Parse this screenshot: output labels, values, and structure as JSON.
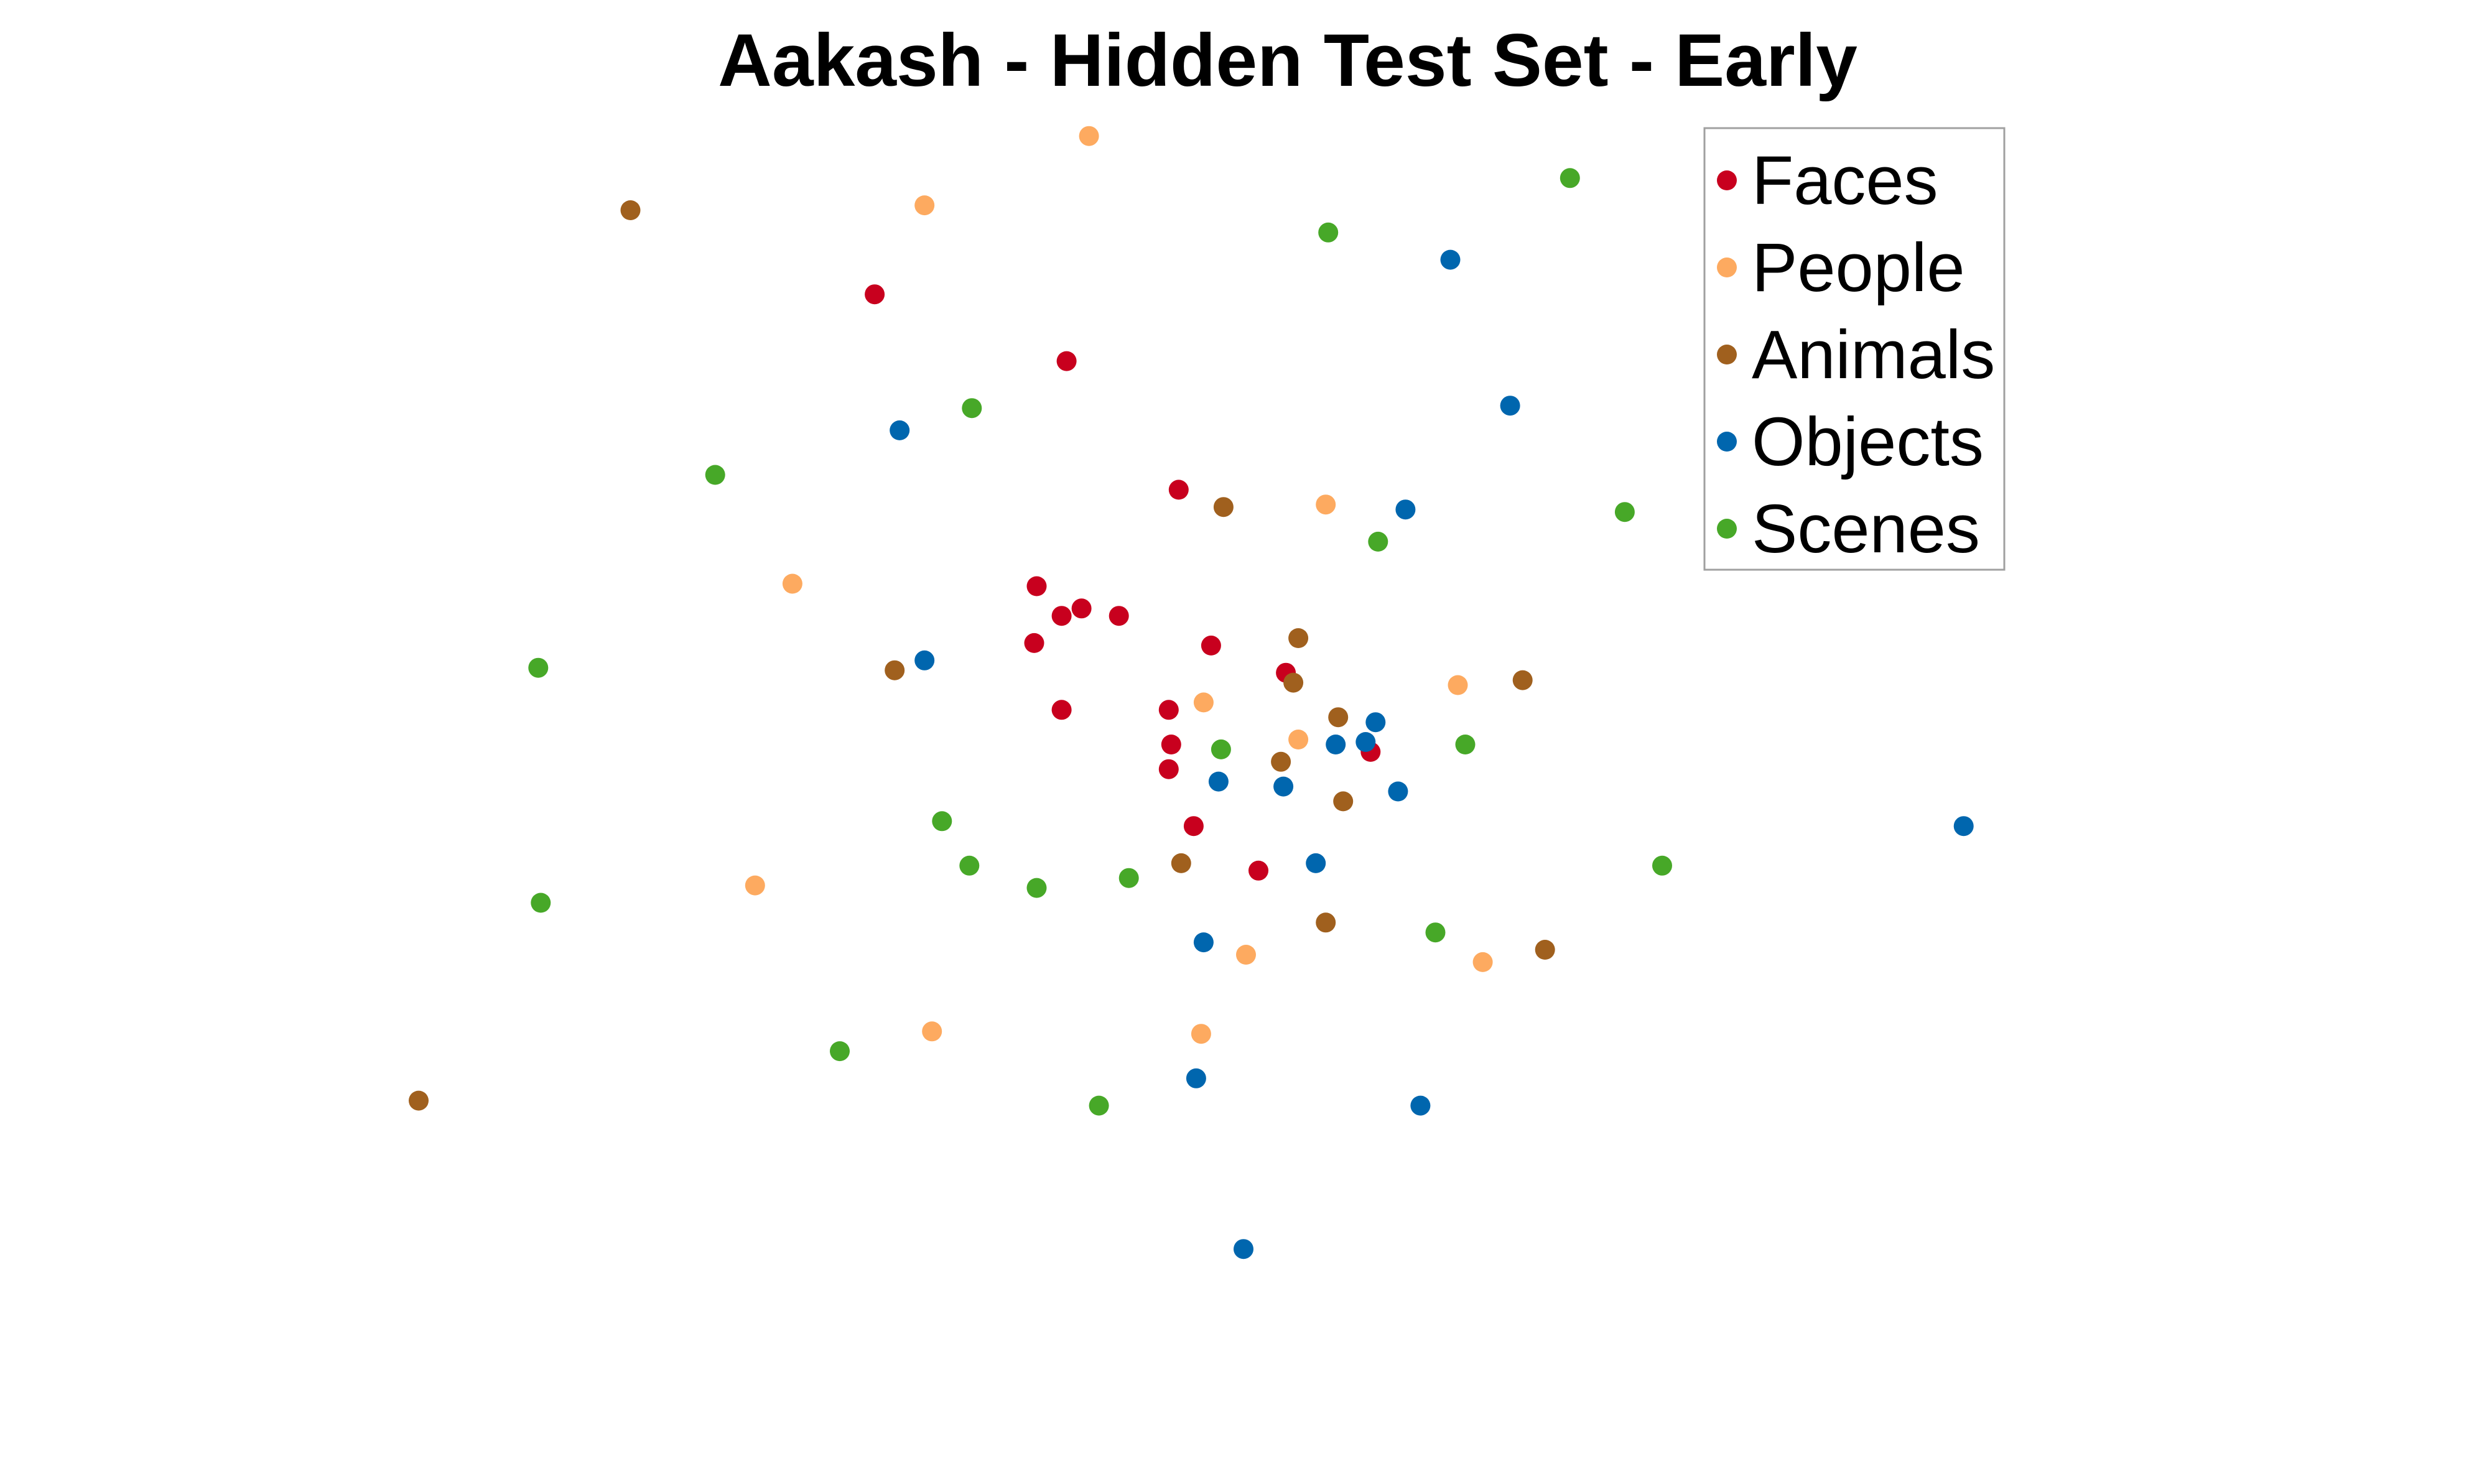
{
  "chart_data": {
    "type": "scatter",
    "title": "Aakash - Hidden Test Set - Early",
    "xlabel": "",
    "ylabel": "",
    "axes_visible": false,
    "grid": false,
    "legend_position": "top-right",
    "xlim": [
      0,
      1000
    ],
    "ylim": [
      0,
      600
    ],
    "series": [
      {
        "name": "Faces",
        "color": "#c8001e",
        "points": [
          [
            351,
            481
          ],
          [
            428,
            454
          ],
          [
            473,
            402
          ],
          [
            416,
            363
          ],
          [
            426,
            351
          ],
          [
            434,
            354
          ],
          [
            449,
            351
          ],
          [
            415,
            340
          ],
          [
            486,
            339
          ],
          [
            426,
            313
          ],
          [
            469,
            313
          ],
          [
            470,
            299
          ],
          [
            469,
            289
          ],
          [
            516,
            328
          ],
          [
            550,
            296
          ],
          [
            479,
            266
          ],
          [
            505,
            248
          ]
        ]
      },
      {
        "name": "People",
        "color": "#fdaa60",
        "points": [
          [
            437,
            545
          ],
          [
            371,
            517
          ],
          [
            532,
            396
          ],
          [
            318,
            364
          ],
          [
            483,
            316
          ],
          [
            585,
            323
          ],
          [
            521,
            301
          ],
          [
            303,
            242
          ],
          [
            500,
            214
          ],
          [
            595,
            211
          ],
          [
            374,
            183
          ],
          [
            482,
            182
          ]
        ]
      },
      {
        "name": "Animals",
        "color": "#a0601e",
        "points": [
          [
            253,
            515
          ],
          [
            491,
            395
          ],
          [
            521,
            342
          ],
          [
            359,
            329
          ],
          [
            519,
            324
          ],
          [
            611,
            325
          ],
          [
            537,
            310
          ],
          [
            514,
            292
          ],
          [
            539,
            276
          ],
          [
            474,
            251
          ],
          [
            620,
            216
          ],
          [
            532,
            227
          ],
          [
            168,
            155
          ]
        ]
      },
      {
        "name": "Objects",
        "color": "#0066ae",
        "points": [
          [
            582,
            495
          ],
          [
            564,
            394
          ],
          [
            606,
            436
          ],
          [
            361,
            426
          ],
          [
            371,
            333
          ],
          [
            552,
            308
          ],
          [
            548,
            300
          ],
          [
            536,
            299
          ],
          [
            489,
            284
          ],
          [
            515,
            282
          ],
          [
            561,
            280
          ],
          [
            528,
            251
          ],
          [
            788,
            266
          ],
          [
            483,
            219
          ],
          [
            480,
            164
          ],
          [
            570,
            153
          ],
          [
            499,
            95
          ]
        ]
      },
      {
        "name": "Scenes",
        "color": "#47a828",
        "points": [
          [
            630,
            528
          ],
          [
            533,
            506
          ],
          [
            390,
            435
          ],
          [
            287,
            408
          ],
          [
            652,
            393
          ],
          [
            553,
            381
          ],
          [
            216,
            330
          ],
          [
            588,
            299
          ],
          [
            490,
            297
          ],
          [
            378,
            268
          ],
          [
            389,
            250
          ],
          [
            453,
            245
          ],
          [
            416,
            241
          ],
          [
            667,
            250
          ],
          [
            217,
            235
          ],
          [
            576,
            223
          ],
          [
            337,
            175
          ],
          [
            441,
            153
          ]
        ]
      }
    ]
  }
}
